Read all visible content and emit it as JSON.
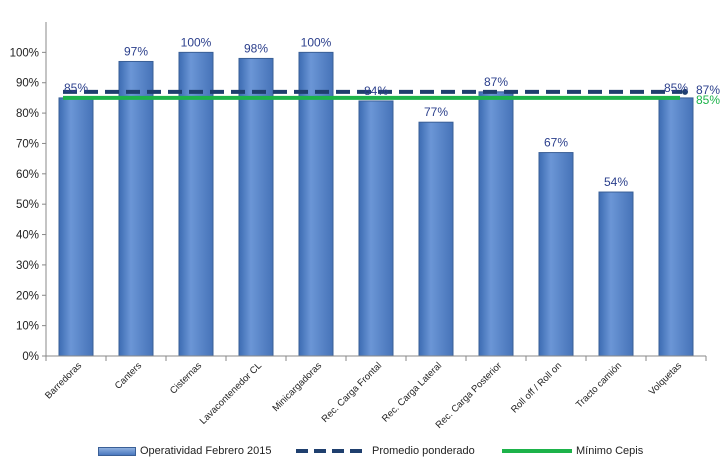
{
  "chart_data": {
    "type": "bar",
    "categories": [
      "Barredoras",
      "Canters",
      "Cisternas",
      "Lavacontenedor CL",
      "Minicargadoras",
      "Rec. Carga Frontal",
      "Rec. Carga Lateral",
      "Rec. Carga Posterior",
      "Roll off / Roll on",
      "Tracto camión",
      "Volquetas"
    ],
    "series": [
      {
        "name": "Operatividad Febrero 2015",
        "values": [
          85,
          97,
          100,
          98,
          100,
          84,
          77,
          87,
          67,
          54,
          85
        ],
        "labels": [
          "85%",
          "97%",
          "100%",
          "98%",
          "100%",
          "84%",
          "77%",
          "87%",
          "67%",
          "54%",
          "85%"
        ],
        "color": "#4f81c7"
      }
    ],
    "reference_lines": [
      {
        "name": "Promedio ponderado",
        "value": 87,
        "label": "87%",
        "style": "dashed",
        "color": "#1f3f6e"
      },
      {
        "name": "Mínimo Cepis",
        "value": 85,
        "label": "85%",
        "style": "solid",
        "color": "#1db34a"
      }
    ],
    "y_ticks": [
      "0%",
      "10%",
      "20%",
      "30%",
      "40%",
      "50%",
      "60%",
      "70%",
      "80%",
      "90%",
      "100%"
    ],
    "ylim": [
      0,
      110
    ],
    "grid": false,
    "legend_position": "bottom"
  }
}
